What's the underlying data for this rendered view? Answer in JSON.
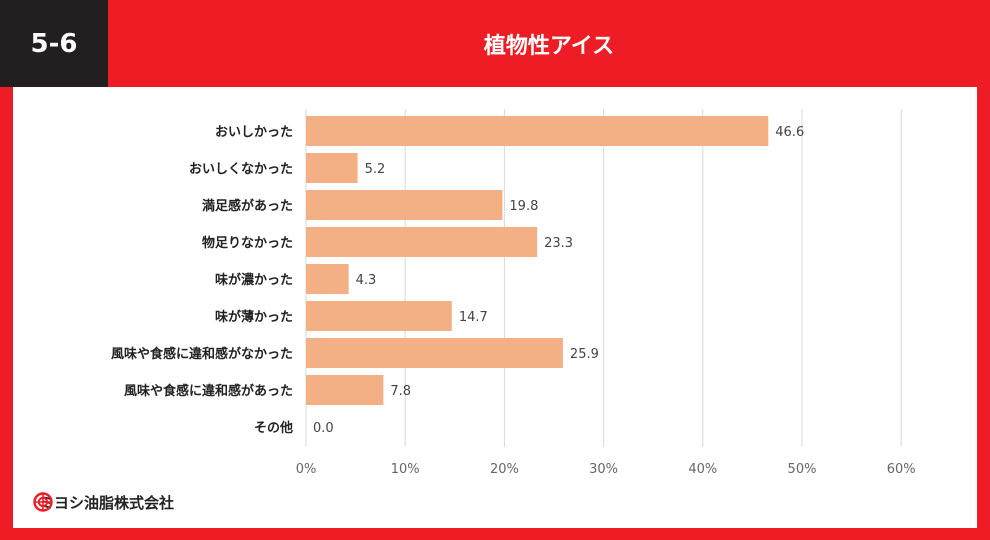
{
  "header": {
    "number": "5-6",
    "title": "植物性アイス"
  },
  "logo": {
    "text": "ミヨシ油脂株式会社",
    "icon": "company-logo-icon",
    "color": "#ee1c25"
  },
  "colors": {
    "bar": "#f2b084",
    "frame": "#ee1c25",
    "number_box": "#231f20",
    "grid": "#d9d9d9"
  },
  "chart_data": {
    "type": "bar",
    "orientation": "horizontal",
    "title": "植物性アイス",
    "categories": [
      "おいしかった",
      "おいしくなかった",
      "満足感があった",
      "物足りなかった",
      "味が濃かった",
      "味が薄かった",
      "風味や食感に違和感がなかった",
      "風味や食感に違和感があった",
      "その他"
    ],
    "values": [
      46.6,
      5.2,
      19.8,
      23.3,
      4.3,
      14.7,
      25.9,
      7.8,
      0.0
    ],
    "value_labels": [
      "46.6",
      "5.2",
      "19.8",
      "23.3",
      "4.3",
      "14.7",
      "25.9",
      "7.8",
      "0.0"
    ],
    "xlim": [
      0,
      60
    ],
    "ticks": [
      "0%",
      "10%",
      "20%",
      "30%",
      "40%",
      "50%",
      "60%"
    ],
    "xlabel": "",
    "ylabel": "",
    "grid": true,
    "legend": "none"
  }
}
